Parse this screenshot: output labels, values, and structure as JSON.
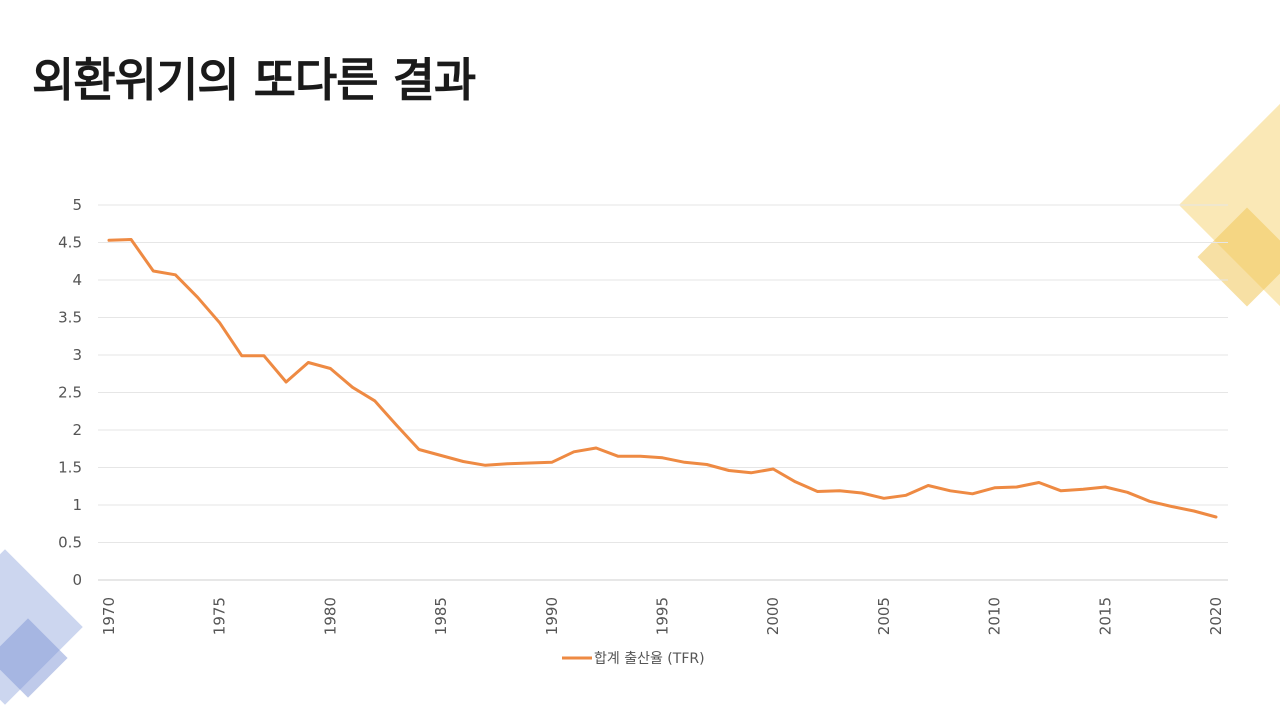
{
  "slide": {
    "title": "외환위기의 또다른 결과"
  },
  "colors": {
    "line": "#ee8a43",
    "grid": "#e6e6e6",
    "deco_yellow": "#f6d67a",
    "deco_blue": "#8ea3dc"
  },
  "chart_data": {
    "type": "line",
    "title": "",
    "xlabel": "",
    "ylabel": "",
    "grid": true,
    "legend_position": "bottom",
    "xlim": [
      1970,
      2020
    ],
    "ylim": [
      0,
      5
    ],
    "x_ticks": [
      "1970",
      "1975",
      "1980",
      "1985",
      "1990",
      "1995",
      "2000",
      "2005",
      "2010",
      "2015",
      "2020"
    ],
    "y_ticks": [
      "0",
      "0.5",
      "1",
      "1.5",
      "2",
      "2.5",
      "3",
      "3.5",
      "4",
      "4.5",
      "5"
    ],
    "series": [
      {
        "name": "합계 출산율 (TFR)",
        "x": [
          1970,
          1971,
          1972,
          1973,
          1974,
          1975,
          1976,
          1977,
          1978,
          1979,
          1980,
          1981,
          1982,
          1983,
          1984,
          1985,
          1986,
          1987,
          1988,
          1989,
          1990,
          1991,
          1992,
          1993,
          1994,
          1995,
          1996,
          1997,
          1998,
          1999,
          2000,
          2001,
          2002,
          2003,
          2004,
          2005,
          2006,
          2007,
          2008,
          2009,
          2010,
          2011,
          2012,
          2013,
          2014,
          2015,
          2016,
          2017,
          2018,
          2019,
          2020
        ],
        "values": [
          4.53,
          4.54,
          4.12,
          4.07,
          3.77,
          3.43,
          2.99,
          2.99,
          2.64,
          2.9,
          2.82,
          2.57,
          2.39,
          2.06,
          1.74,
          1.66,
          1.58,
          1.53,
          1.55,
          1.56,
          1.57,
          1.71,
          1.76,
          1.65,
          1.65,
          1.63,
          1.57,
          1.54,
          1.46,
          1.43,
          1.48,
          1.31,
          1.18,
          1.19,
          1.16,
          1.09,
          1.13,
          1.26,
          1.19,
          1.15,
          1.23,
          1.24,
          1.3,
          1.19,
          1.21,
          1.24,
          1.17,
          1.05,
          0.98,
          0.92,
          0.84
        ]
      }
    ]
  }
}
